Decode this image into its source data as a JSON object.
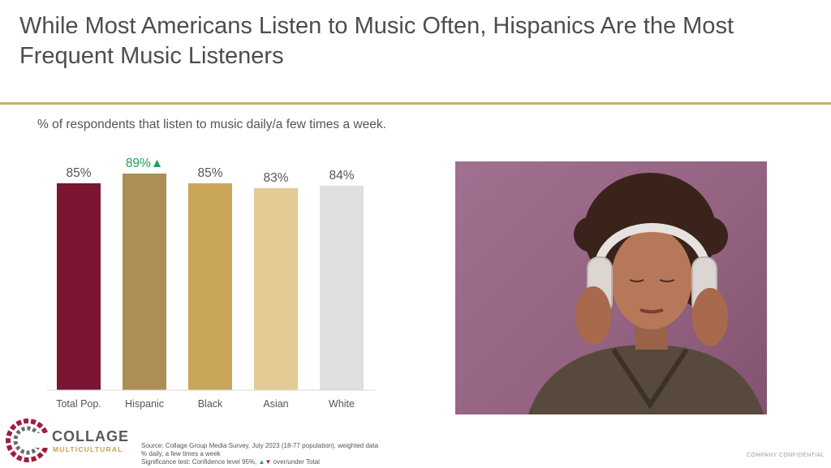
{
  "slide": {
    "title": "While Most Americans Listen to Music Often, Hispanics Are the Most Frequent Music Listeners",
    "subtitle": "% of respondents that listen to music daily/a few times a week.",
    "confidential": "COMPANY CONFIDENTIAL"
  },
  "logo": {
    "line1": "COLLAGE",
    "line2": "MULTICULTURAL"
  },
  "footnotes": {
    "line1": "Source: Collage Group Media Survey, July 2023 (18-77 population), weighted data",
    "line2": "% daily, a few times a week",
    "line3_prefix": "Significance test: Confidence level 95%,",
    "up_symbol": "▲",
    "down_symbol": "▼",
    "line3_suffix": "over/under Total"
  },
  "colors": {
    "accent_gold": "#c9b06e",
    "significance_up": "#1fa05a",
    "significance_down": "#c0182e"
  },
  "photo": {
    "icon": "woman-listening-with-headphones"
  },
  "chart_data": {
    "type": "bar",
    "categories": [
      "Total Pop.",
      "Hispanic",
      "Black",
      "Asian",
      "White"
    ],
    "values": [
      85,
      89,
      85,
      83,
      84
    ],
    "value_labels": [
      "85%",
      "89%",
      "85%",
      "83%",
      "84%"
    ],
    "significance": [
      "",
      "up",
      "",
      "",
      ""
    ],
    "bar_colors": [
      "#7a1632",
      "#ab8f55",
      "#c9a65a",
      "#e3cb95",
      "#e0e0e0"
    ],
    "label_color": "#555555",
    "significant_label_color": "#1fa05a",
    "ylim": [
      0,
      100
    ],
    "grid": false
  }
}
